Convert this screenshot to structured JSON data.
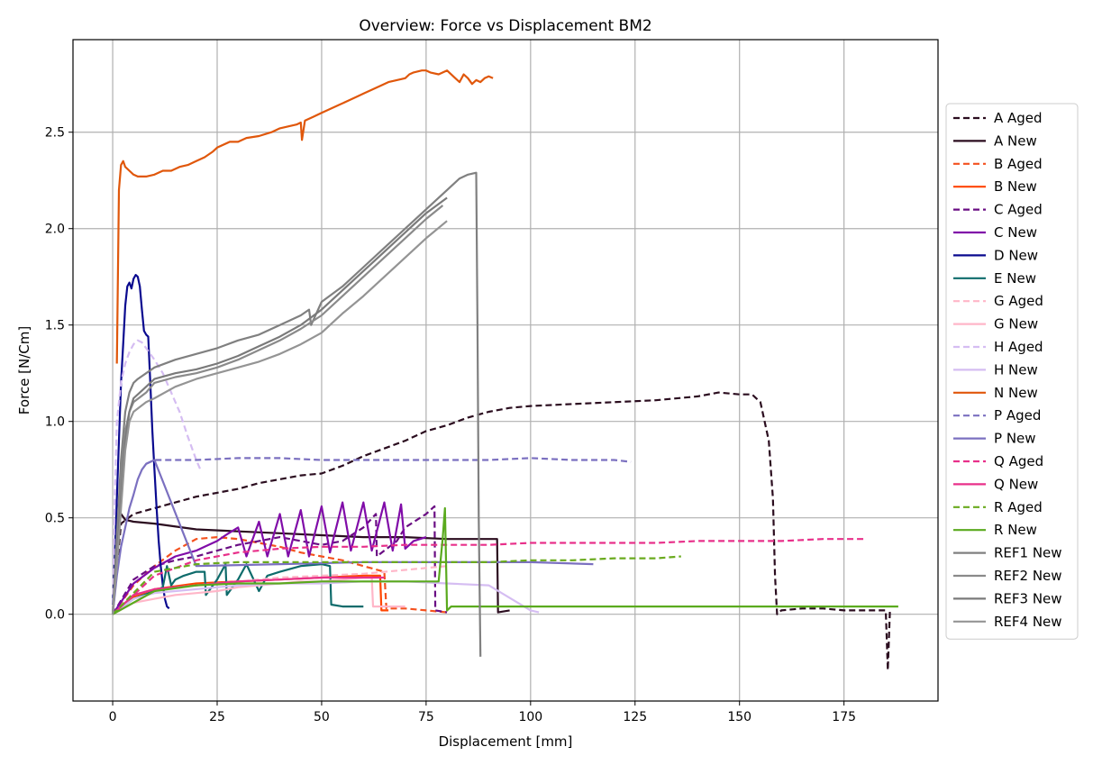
{
  "chart_data": {
    "type": "line",
    "title": "Overview: Force vs Displacement BM2",
    "xlabel": "Displacement [mm]",
    "ylabel": "Force [N/Cm]",
    "xlim": [
      -9.5,
      197.5
    ],
    "ylim": [
      -0.45,
      2.98
    ],
    "xticks": [
      0,
      25,
      50,
      75,
      100,
      125,
      150,
      175
    ],
    "yticks": [
      0.0,
      0.5,
      1.0,
      1.5,
      2.0,
      2.5
    ],
    "ytick_labels": [
      "0.0",
      "0.5",
      "1.0",
      "1.5",
      "2.0",
      "2.5"
    ],
    "grid": true,
    "legend_position": "right",
    "series": [
      {
        "name": "A Aged",
        "color": "#2b0d1f",
        "dash": true,
        "x": [
          0,
          2,
          5,
          10,
          15,
          20,
          25,
          30,
          35,
          40,
          45,
          50,
          55,
          60,
          65,
          70,
          75,
          80,
          85,
          90,
          95,
          100,
          110,
          120,
          130,
          140,
          145,
          150,
          153,
          155,
          157,
          158,
          158.5,
          159,
          160,
          165,
          170,
          175,
          180,
          185,
          185.5,
          186
        ],
        "y": [
          0,
          0.47,
          0.52,
          0.55,
          0.58,
          0.61,
          0.63,
          0.65,
          0.68,
          0.7,
          0.72,
          0.73,
          0.77,
          0.82,
          0.86,
          0.9,
          0.95,
          0.98,
          1.02,
          1.05,
          1.07,
          1.08,
          1.09,
          1.1,
          1.11,
          1.13,
          1.15,
          1.14,
          1.14,
          1.1,
          0.9,
          0.6,
          0.2,
          0.0,
          0.02,
          0.03,
          0.03,
          0.02,
          0.02,
          0.02,
          -0.29,
          0.03
        ]
      },
      {
        "name": "A New",
        "color": "#2b0d1f",
        "dash": false,
        "x": [
          0,
          1,
          2,
          3,
          5,
          10,
          20,
          30,
          40,
          50,
          60,
          70,
          80,
          90,
          92,
          92.2,
          95
        ],
        "y": [
          0,
          0.45,
          0.52,
          0.49,
          0.48,
          0.47,
          0.44,
          0.43,
          0.42,
          0.41,
          0.4,
          0.4,
          0.39,
          0.39,
          0.39,
          0.01,
          0.02
        ]
      },
      {
        "name": "B Aged",
        "color": "#f4511e",
        "dash": true,
        "x": [
          0,
          5,
          10,
          15,
          20,
          25,
          30,
          35,
          40,
          45,
          50,
          55,
          60,
          65,
          65.5,
          70,
          75,
          80
        ],
        "y": [
          0,
          0.15,
          0.25,
          0.33,
          0.39,
          0.4,
          0.39,
          0.37,
          0.35,
          0.32,
          0.3,
          0.28,
          0.25,
          0.22,
          0.03,
          0.03,
          0.02,
          0.01
        ]
      },
      {
        "name": "B New",
        "color": "#ff4500",
        "dash": false,
        "x": [
          0,
          5,
          10,
          20,
          30,
          40,
          50,
          60,
          64,
          64.3,
          66
        ],
        "y": [
          0,
          0.09,
          0.13,
          0.16,
          0.17,
          0.18,
          0.19,
          0.2,
          0.2,
          0.02,
          0.02
        ]
      },
      {
        "name": "C Aged",
        "color": "#6a0d83",
        "dash": true,
        "x": [
          0,
          5,
          10,
          15,
          20,
          25,
          30,
          35,
          40,
          45,
          50,
          55,
          60,
          63,
          63.2,
          68,
          70,
          75,
          77,
          77.2,
          80
        ],
        "y": [
          0,
          0.18,
          0.25,
          0.28,
          0.3,
          0.33,
          0.36,
          0.38,
          0.4,
          0.38,
          0.36,
          0.38,
          0.45,
          0.52,
          0.3,
          0.38,
          0.45,
          0.52,
          0.56,
          0.02,
          0.01
        ]
      },
      {
        "name": "C New",
        "color": "#800ca8",
        "dash": false,
        "x": [
          0,
          5,
          10,
          15,
          20,
          22,
          25,
          27,
          30,
          32,
          35,
          37,
          40,
          42,
          45,
          47,
          50,
          52,
          55,
          57,
          60,
          62,
          65,
          67,
          69,
          70,
          72,
          75
        ],
        "y": [
          0,
          0.16,
          0.24,
          0.3,
          0.33,
          0.35,
          0.38,
          0.41,
          0.45,
          0.3,
          0.48,
          0.3,
          0.52,
          0.3,
          0.54,
          0.3,
          0.56,
          0.32,
          0.58,
          0.33,
          0.58,
          0.33,
          0.58,
          0.33,
          0.57,
          0.34,
          0.38,
          0.4
        ]
      },
      {
        "name": "D New",
        "color": "#0a0a8f",
        "dash": false,
        "x": [
          0,
          0.5,
          1,
          1.5,
          2,
          2.5,
          3,
          3.5,
          4,
          4.5,
          5,
          5.5,
          6,
          6.5,
          7,
          7.5,
          8,
          8.5,
          9,
          9.5,
          10,
          10.5,
          11,
          11.5,
          12,
          12.5,
          13,
          13.5
        ],
        "y": [
          0.05,
          0.3,
          0.6,
          0.9,
          1.2,
          1.4,
          1.6,
          1.7,
          1.72,
          1.69,
          1.74,
          1.76,
          1.75,
          1.7,
          1.58,
          1.47,
          1.45,
          1.44,
          1.2,
          0.95,
          0.75,
          0.55,
          0.38,
          0.25,
          0.15,
          0.08,
          0.04,
          0.03
        ]
      },
      {
        "name": "E New",
        "color": "#0e6b6b",
        "dash": false,
        "x": [
          0,
          5,
          10,
          12,
          13,
          14,
          15,
          17,
          20,
          22,
          22.3,
          25,
          27,
          27.3,
          30,
          32,
          35,
          37,
          40,
          45,
          50,
          52,
          52.3,
          55,
          60
        ],
        "y": [
          0,
          0.08,
          0.12,
          0.14,
          0.25,
          0.15,
          0.18,
          0.2,
          0.22,
          0.22,
          0.1,
          0.18,
          0.26,
          0.1,
          0.18,
          0.26,
          0.12,
          0.2,
          0.22,
          0.25,
          0.26,
          0.25,
          0.05,
          0.04,
          0.04
        ]
      },
      {
        "name": "G Aged",
        "color": "#ffb6c8",
        "dash": true,
        "x": [
          0,
          5,
          10,
          20,
          30,
          40,
          50,
          60,
          70,
          80
        ],
        "y": [
          0,
          0.1,
          0.13,
          0.15,
          0.17,
          0.19,
          0.2,
          0.21,
          0.23,
          0.25
        ]
      },
      {
        "name": "G New",
        "color": "#ffb6c8",
        "dash": false,
        "x": [
          0,
          5,
          10,
          15,
          20,
          25,
          30,
          35,
          40,
          45,
          50,
          55,
          60,
          62,
          62.3,
          70
        ],
        "y": [
          0,
          0.06,
          0.08,
          0.1,
          0.11,
          0.12,
          0.14,
          0.15,
          0.16,
          0.17,
          0.17,
          0.18,
          0.19,
          0.19,
          0.04,
          0.04
        ]
      },
      {
        "name": "H Aged",
        "color": "#d5bdf2",
        "dash": true,
        "x": [
          0,
          0.5,
          1,
          2,
          3,
          4,
          5,
          6,
          7,
          8,
          10,
          12,
          14,
          16,
          18,
          20,
          21
        ],
        "y": [
          0,
          0.6,
          1.0,
          1.2,
          1.3,
          1.36,
          1.4,
          1.42,
          1.41,
          1.38,
          1.32,
          1.25,
          1.15,
          1.05,
          0.92,
          0.8,
          0.75
        ]
      },
      {
        "name": "H New",
        "color": "#d5bdf2",
        "dash": false,
        "x": [
          0,
          5,
          10,
          20,
          30,
          40,
          50,
          60,
          70,
          80,
          90,
          100,
          102
        ],
        "y": [
          0,
          0.08,
          0.11,
          0.13,
          0.15,
          0.16,
          0.16,
          0.17,
          0.17,
          0.16,
          0.15,
          0.02,
          0.01
        ]
      },
      {
        "name": "N New",
        "color": "#e0570b",
        "dash": false,
        "x": [
          1,
          1.5,
          2,
          2.5,
          3,
          4,
          5,
          6,
          8,
          10,
          12,
          14,
          16,
          18,
          20,
          22,
          24,
          25,
          28,
          30,
          32,
          35,
          38,
          40,
          42,
          44,
          45,
          45.3,
          46,
          48,
          50,
          52,
          54,
          56,
          58,
          60,
          62,
          64,
          65,
          66,
          68,
          70,
          71,
          72,
          74,
          75,
          76,
          78,
          80,
          82,
          83,
          84,
          85,
          86,
          87,
          88,
          89,
          90,
          91
        ],
        "y": [
          1.3,
          2.2,
          2.33,
          2.35,
          2.32,
          2.3,
          2.28,
          2.27,
          2.27,
          2.28,
          2.3,
          2.3,
          2.32,
          2.33,
          2.35,
          2.37,
          2.4,
          2.42,
          2.45,
          2.45,
          2.47,
          2.48,
          2.5,
          2.52,
          2.53,
          2.54,
          2.55,
          2.46,
          2.56,
          2.58,
          2.6,
          2.62,
          2.64,
          2.66,
          2.68,
          2.7,
          2.72,
          2.74,
          2.75,
          2.76,
          2.77,
          2.78,
          2.8,
          2.81,
          2.82,
          2.82,
          2.81,
          2.8,
          2.82,
          2.78,
          2.76,
          2.8,
          2.78,
          2.75,
          2.77,
          2.76,
          2.78,
          2.79,
          2.78
        ]
      },
      {
        "name": "P Aged",
        "color": "#7b70c0",
        "dash": true,
        "x": [
          8,
          9,
          10,
          20,
          30,
          40,
          50,
          60,
          70,
          80,
          90,
          100,
          110,
          120,
          124
        ],
        "y": [
          0.78,
          0.79,
          0.8,
          0.8,
          0.81,
          0.81,
          0.8,
          0.8,
          0.8,
          0.8,
          0.8,
          0.81,
          0.8,
          0.8,
          0.79
        ]
      },
      {
        "name": "P New",
        "color": "#7b70c0",
        "dash": false,
        "x": [
          0,
          1,
          2,
          3,
          4,
          5,
          6,
          7,
          8,
          10,
          20,
          40,
          60,
          80,
          100,
          115
        ],
        "y": [
          0,
          0.2,
          0.35,
          0.45,
          0.55,
          0.62,
          0.7,
          0.75,
          0.78,
          0.8,
          0.25,
          0.26,
          0.27,
          0.27,
          0.27,
          0.26
        ]
      },
      {
        "name": "Q Aged",
        "color": "#e8308a",
        "dash": true,
        "x": [
          0,
          10,
          20,
          30,
          40,
          50,
          60,
          70,
          80,
          90,
          100,
          110,
          120,
          130,
          140,
          150,
          160,
          170,
          180
        ],
        "y": [
          0,
          0.2,
          0.28,
          0.32,
          0.34,
          0.35,
          0.35,
          0.36,
          0.36,
          0.36,
          0.37,
          0.37,
          0.37,
          0.37,
          0.38,
          0.38,
          0.38,
          0.39,
          0.39
        ]
      },
      {
        "name": "Q New",
        "color": "#e8308a",
        "dash": false,
        "x": [
          0,
          5,
          10,
          20,
          30,
          40,
          50,
          60,
          65
        ],
        "y": [
          0,
          0.1,
          0.13,
          0.15,
          0.17,
          0.18,
          0.19,
          0.19,
          0.19
        ]
      },
      {
        "name": "R Aged",
        "color": "#6aaa1e",
        "dash": true,
        "x": [
          0,
          10,
          20,
          30,
          40,
          50,
          60,
          70,
          80,
          90,
          100,
          110,
          120,
          130,
          136
        ],
        "y": [
          0,
          0.22,
          0.26,
          0.27,
          0.27,
          0.27,
          0.27,
          0.27,
          0.27,
          0.27,
          0.28,
          0.28,
          0.29,
          0.29,
          0.3
        ]
      },
      {
        "name": "R New",
        "color": "#5aaa1e",
        "dash": false,
        "x": [
          0,
          10,
          20,
          30,
          40,
          50,
          60,
          70,
          78,
          79,
          79.5,
          80,
          80.5,
          81,
          90,
          100,
          120,
          140,
          160,
          180,
          188
        ],
        "y": [
          0,
          0.12,
          0.15,
          0.16,
          0.16,
          0.17,
          0.17,
          0.17,
          0.17,
          0.4,
          0.55,
          0.02,
          0.03,
          0.04,
          0.04,
          0.04,
          0.04,
          0.04,
          0.04,
          0.04,
          0.04
        ]
      },
      {
        "name": "REF1 New",
        "color": "#808080",
        "dash": false,
        "x": [
          0,
          1,
          2,
          3,
          4,
          5,
          6,
          8,
          10,
          15,
          20,
          25,
          30,
          35,
          40,
          45,
          47,
          47.5,
          50,
          55,
          60,
          65,
          70,
          75,
          80,
          83,
          85,
          87,
          87.3,
          87.6,
          88
        ],
        "y": [
          0,
          0.4,
          0.8,
          1.05,
          1.15,
          1.2,
          1.22,
          1.25,
          1.28,
          1.32,
          1.35,
          1.38,
          1.42,
          1.45,
          1.5,
          1.55,
          1.58,
          1.5,
          1.62,
          1.7,
          1.8,
          1.9,
          2.0,
          2.1,
          2.2,
          2.26,
          2.28,
          2.29,
          1.5,
          0.5,
          -0.22
        ]
      },
      {
        "name": "REF2 New",
        "color": "#8a8a8a",
        "dash": false,
        "x": [
          0,
          1,
          2,
          3,
          4,
          5,
          8,
          10,
          15,
          20,
          25,
          30,
          35,
          40,
          45,
          50,
          55,
          60,
          65,
          70,
          75,
          79
        ],
        "y": [
          0,
          0.35,
          0.7,
          0.95,
          1.05,
          1.1,
          1.15,
          1.2,
          1.23,
          1.25,
          1.28,
          1.32,
          1.37,
          1.42,
          1.48,
          1.55,
          1.65,
          1.75,
          1.85,
          1.95,
          2.05,
          2.12
        ]
      },
      {
        "name": "REF3 New",
        "color": "#7a7a7a",
        "dash": false,
        "x": [
          0,
          1,
          2,
          3,
          4,
          5,
          8,
          10,
          15,
          20,
          25,
          30,
          35,
          40,
          45,
          50,
          55,
          60,
          65,
          70,
          75,
          80
        ],
        "y": [
          0,
          0.3,
          0.6,
          0.9,
          1.05,
          1.12,
          1.18,
          1.22,
          1.25,
          1.27,
          1.3,
          1.34,
          1.39,
          1.44,
          1.5,
          1.58,
          1.68,
          1.78,
          1.88,
          1.98,
          2.08,
          2.16
        ]
      },
      {
        "name": "REF4 New",
        "color": "#949494",
        "dash": false,
        "x": [
          0,
          1,
          2,
          3,
          4,
          5,
          8,
          10,
          15,
          20,
          25,
          30,
          35,
          40,
          45,
          50,
          52,
          55,
          60,
          65,
          70,
          75,
          80
        ],
        "y": [
          0,
          0.25,
          0.55,
          0.85,
          1.0,
          1.05,
          1.1,
          1.12,
          1.18,
          1.22,
          1.25,
          1.28,
          1.31,
          1.35,
          1.4,
          1.46,
          1.5,
          1.56,
          1.65,
          1.75,
          1.85,
          1.95,
          2.04
        ]
      }
    ]
  }
}
